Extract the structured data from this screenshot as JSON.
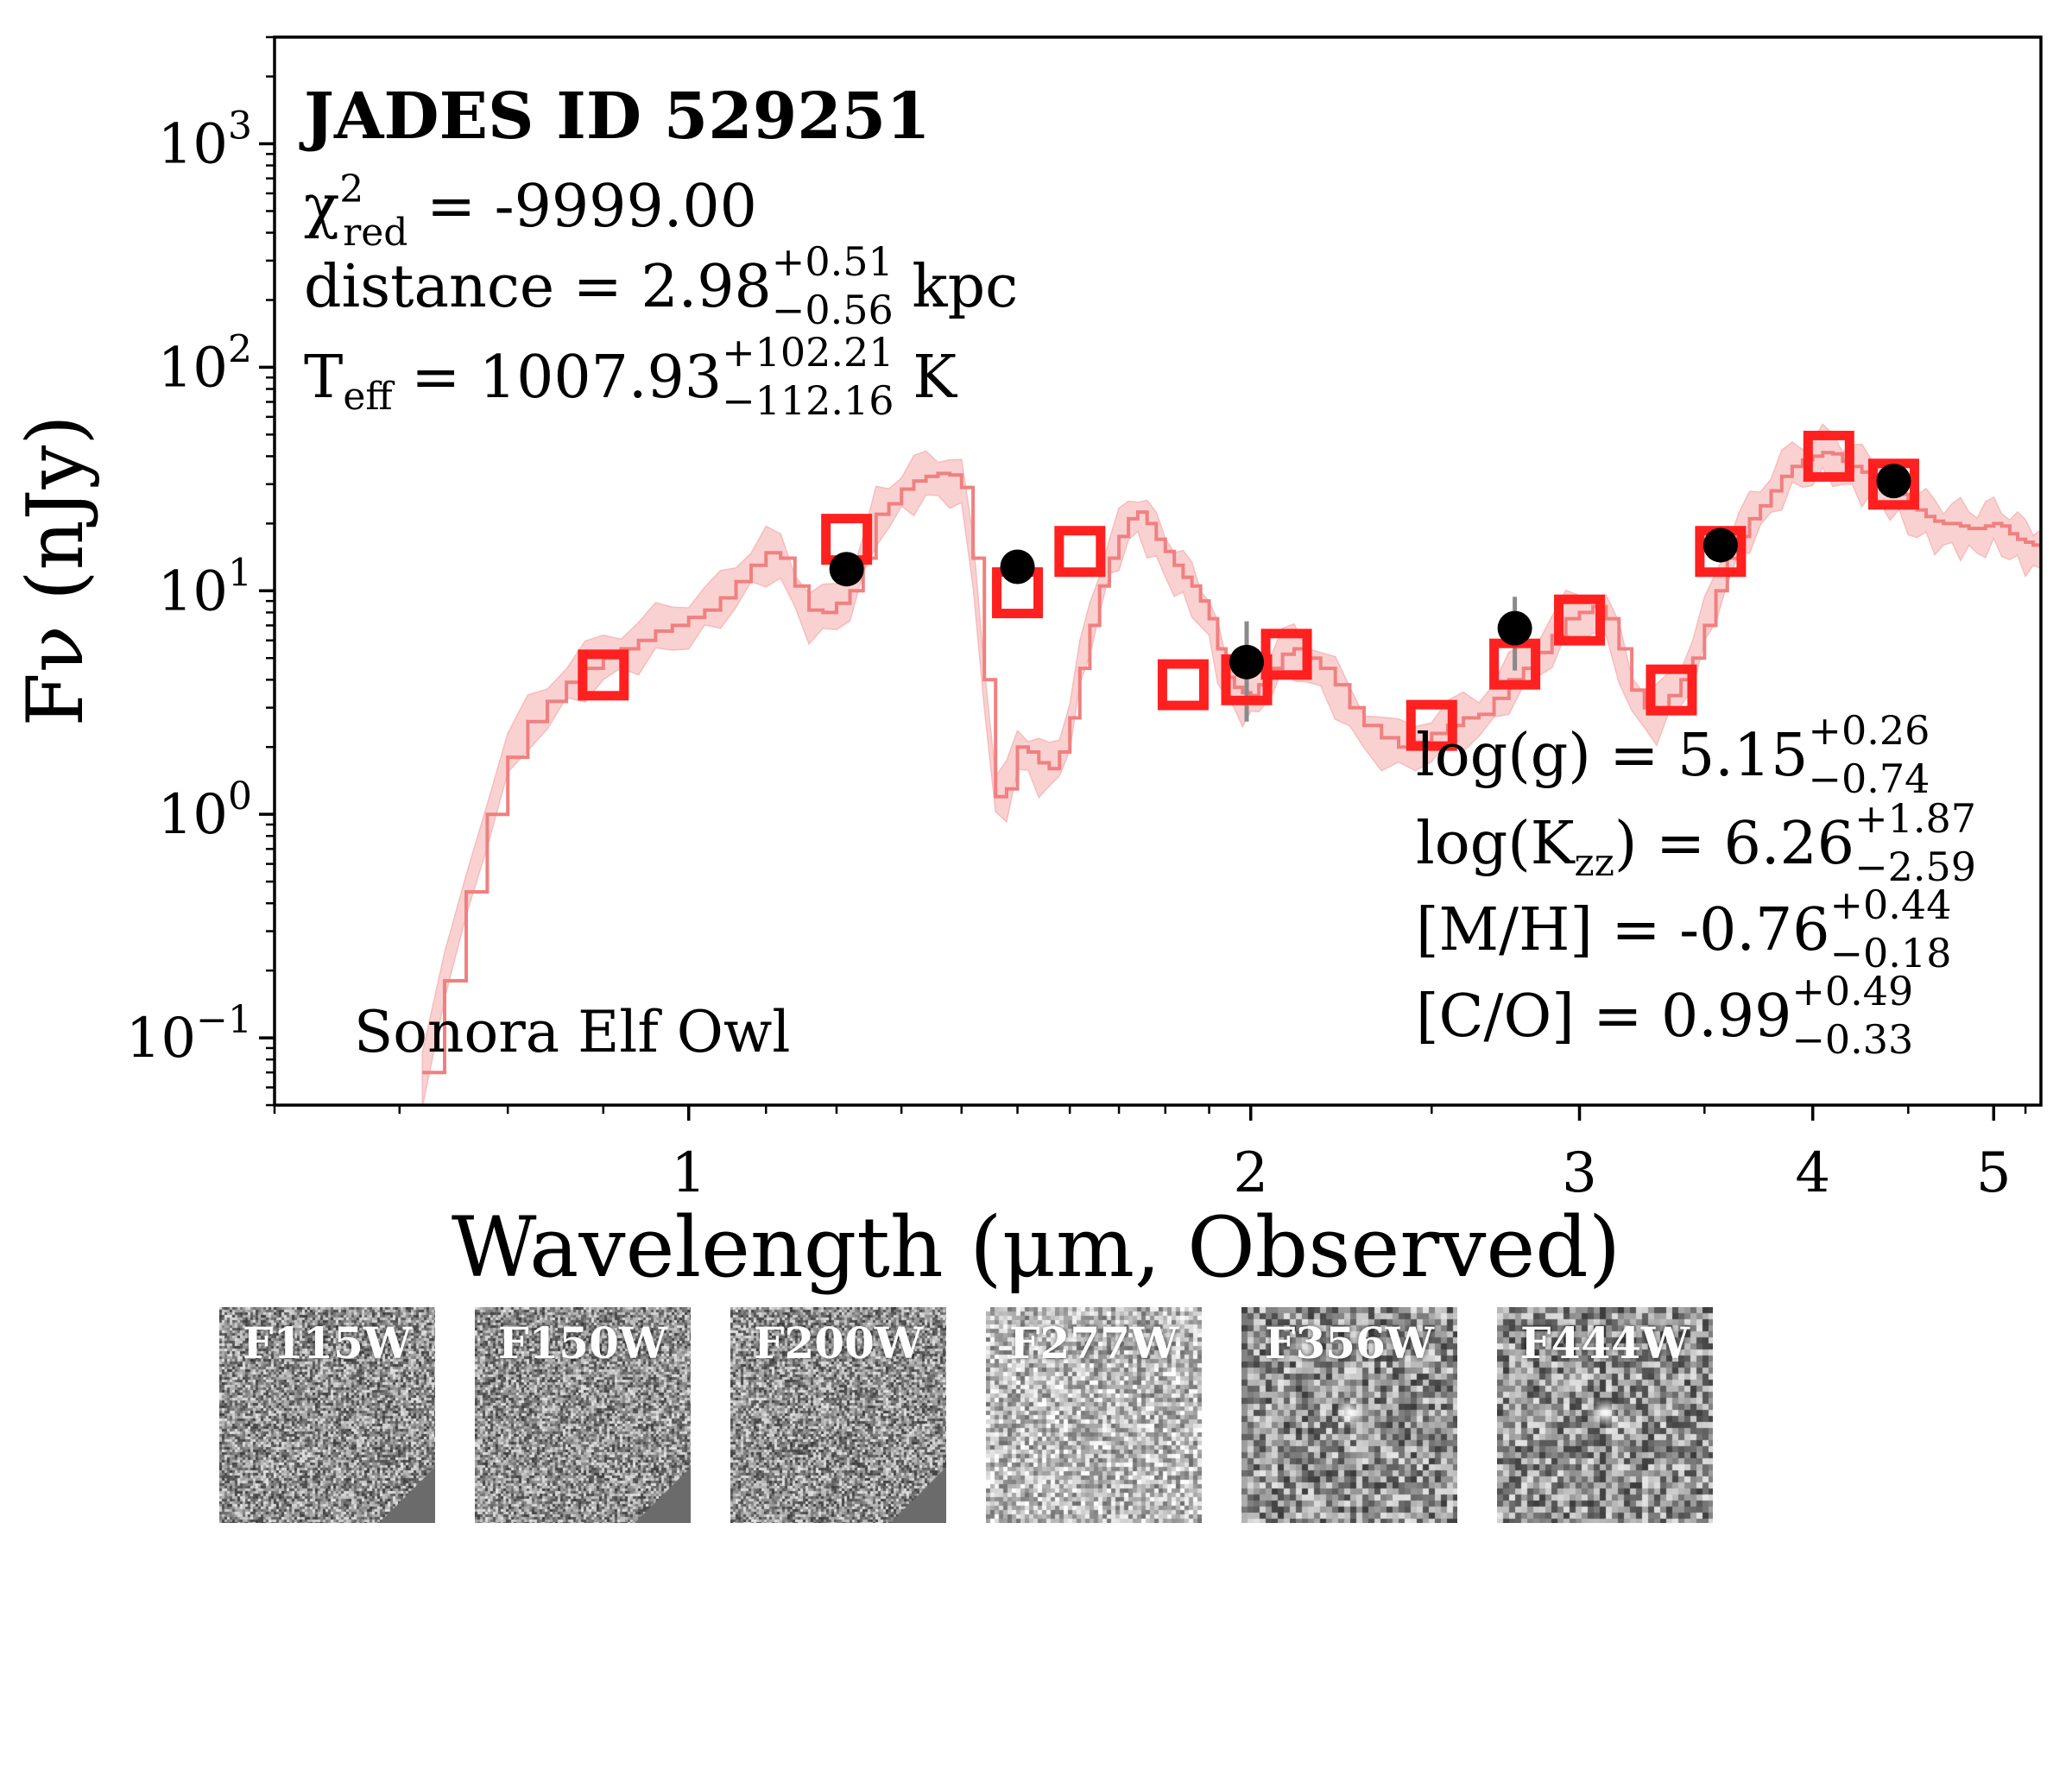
{
  "chart_data": {
    "type": "scatter",
    "title": "JADES ID 529251",
    "xlabel": "Wavelength (μm, Observed)",
    "ylabel": "Fν (nJy)",
    "xscale": "log",
    "yscale": "log",
    "xlim": [
      0.6,
      5.3
    ],
    "ylim": [
      0.05,
      3000
    ],
    "x_ticks": [
      {
        "value": 1,
        "label": "1"
      },
      {
        "value": 2,
        "label": "2"
      },
      {
        "value": 3,
        "label": "3"
      },
      {
        "value": 4,
        "label": "4"
      },
      {
        "value": 5,
        "label": "5"
      }
    ],
    "y_ticks": [
      {
        "value": 0.1,
        "base": "10",
        "exp": "−1"
      },
      {
        "value": 1,
        "base": "10",
        "exp": "0"
      },
      {
        "value": 10,
        "base": "10",
        "exp": "1"
      },
      {
        "value": 100,
        "base": "10",
        "exp": "2"
      },
      {
        "value": 1000,
        "base": "10",
        "exp": "3"
      }
    ],
    "grid": false,
    "fit_annotations": {
      "chi2_label": "χ",
      "chi2_sup": "2",
      "chi2_sub": "red",
      "chi2_value": " = -9999.00",
      "distance_label": "distance = 2.98",
      "distance_plus": "+0.51",
      "distance_minus": "−0.56",
      "distance_unit": " kpc",
      "teff_label": "T",
      "teff_sub": "eff",
      "teff_value": " = 1007.93",
      "teff_plus": "+102.21",
      "teff_minus": "−112.16",
      "teff_unit": " K",
      "logg_label": "log(g) = 5.15",
      "logg_plus": "+0.26",
      "logg_minus": "−0.74",
      "logkzz_label": "log(K",
      "logkzz_sub": "zz",
      "logkzz_value": ") = 6.26",
      "logkzz_plus": "+1.87",
      "logkzz_minus": "−2.59",
      "mh_label": "[M/H] = -0.76",
      "mh_plus": "+0.44",
      "mh_minus": "−0.18",
      "co_label": "[C/O] = 0.99",
      "co_plus": "+0.49",
      "co_minus": "−0.33",
      "model_name": "Sonora Elf Owl"
    },
    "series": [
      {
        "kind": "model_spectrum",
        "color": "#f08080",
        "band_color": "#f9caca",
        "points": [
          [
            0.72,
            0.07
          ],
          [
            0.74,
            0.18
          ],
          [
            0.76,
            0.45
          ],
          [
            0.78,
            1.0
          ],
          [
            0.8,
            1.8
          ],
          [
            0.82,
            2.6
          ],
          [
            0.84,
            3.2
          ],
          [
            0.86,
            3.9
          ],
          [
            0.88,
            4.5
          ],
          [
            0.9,
            5.0
          ],
          [
            0.92,
            5.5
          ],
          [
            0.94,
            6.0
          ],
          [
            0.96,
            6.6
          ],
          [
            0.98,
            7.0
          ],
          [
            1.0,
            7.6
          ],
          [
            1.02,
            8.2
          ],
          [
            1.04,
            9.3
          ],
          [
            1.06,
            11.0
          ],
          [
            1.08,
            13.0
          ],
          [
            1.1,
            14.8
          ],
          [
            1.12,
            14.0
          ],
          [
            1.14,
            10.5
          ],
          [
            1.16,
            8.2
          ],
          [
            1.18,
            8.0
          ],
          [
            1.2,
            8.8
          ],
          [
            1.22,
            10.0
          ],
          [
            1.24,
            14.0
          ],
          [
            1.26,
            22.0
          ],
          [
            1.28,
            24.5
          ],
          [
            1.3,
            28.5
          ],
          [
            1.32,
            31.0
          ],
          [
            1.34,
            32.5
          ],
          [
            1.36,
            33.5
          ],
          [
            1.38,
            33.0
          ],
          [
            1.4,
            29.0
          ],
          [
            1.42,
            14.0
          ],
          [
            1.44,
            4.0
          ],
          [
            1.46,
            1.2
          ],
          [
            1.48,
            1.3
          ],
          [
            1.5,
            2.0
          ],
          [
            1.52,
            1.9
          ],
          [
            1.54,
            1.7
          ],
          [
            1.56,
            1.6
          ],
          [
            1.58,
            1.9
          ],
          [
            1.6,
            2.7
          ],
          [
            1.62,
            4.5
          ],
          [
            1.64,
            7.0
          ],
          [
            1.66,
            10.5
          ],
          [
            1.68,
            14.0
          ],
          [
            1.7,
            17.5
          ],
          [
            1.72,
            21.0
          ],
          [
            1.74,
            22.5
          ],
          [
            1.76,
            20.0
          ],
          [
            1.78,
            17.0
          ],
          [
            1.8,
            15.0
          ],
          [
            1.82,
            13.0
          ],
          [
            1.84,
            11.5
          ],
          [
            1.86,
            10.5
          ],
          [
            1.88,
            9.0
          ],
          [
            1.9,
            7.5
          ],
          [
            1.92,
            5.5
          ],
          [
            1.94,
            4.1
          ],
          [
            1.96,
            3.7
          ],
          [
            1.98,
            3.5
          ],
          [
            2.0,
            3.4
          ],
          [
            2.02,
            3.8
          ],
          [
            2.05,
            4.5
          ],
          [
            2.08,
            5.2
          ],
          [
            2.11,
            5.5
          ],
          [
            2.14,
            5.0
          ],
          [
            2.18,
            4.5
          ],
          [
            2.22,
            3.8
          ],
          [
            2.26,
            3.0
          ],
          [
            2.3,
            2.5
          ],
          [
            2.35,
            2.2
          ],
          [
            2.4,
            2.0
          ],
          [
            2.45,
            2.1
          ],
          [
            2.5,
            2.3
          ],
          [
            2.55,
            2.5
          ],
          [
            2.6,
            2.7
          ],
          [
            2.65,
            2.8
          ],
          [
            2.7,
            3.3
          ],
          [
            2.75,
            4.0
          ],
          [
            2.8,
            4.5
          ],
          [
            2.85,
            5.3
          ],
          [
            2.9,
            6.3
          ],
          [
            2.95,
            7.5
          ],
          [
            3.0,
            8.0
          ],
          [
            3.05,
            8.5
          ],
          [
            3.1,
            7.5
          ],
          [
            3.15,
            5.5
          ],
          [
            3.2,
            3.6
          ],
          [
            3.25,
            3.0
          ],
          [
            3.3,
            2.9
          ],
          [
            3.35,
            3.4
          ],
          [
            3.4,
            4.0
          ],
          [
            3.45,
            5.0
          ],
          [
            3.5,
            7.0
          ],
          [
            3.55,
            10.0
          ],
          [
            3.6,
            14.0
          ],
          [
            3.65,
            17.5
          ],
          [
            3.7,
            21.0
          ],
          [
            3.75,
            24.0
          ],
          [
            3.8,
            28.0
          ],
          [
            3.85,
            32.5
          ],
          [
            3.9,
            36.0
          ],
          [
            3.95,
            38.5
          ],
          [
            4.0,
            40.0
          ],
          [
            4.05,
            41.5
          ],
          [
            4.1,
            41.0
          ],
          [
            4.15,
            38.0
          ],
          [
            4.2,
            36.0
          ],
          [
            4.25,
            34.0
          ],
          [
            4.3,
            33.0
          ],
          [
            4.35,
            31.0
          ],
          [
            4.4,
            29.0
          ],
          [
            4.45,
            27.0
          ],
          [
            4.5,
            24.0
          ],
          [
            4.55,
            23.0
          ],
          [
            4.6,
            21.5
          ],
          [
            4.65,
            20.5
          ],
          [
            4.7,
            20.0
          ],
          [
            4.75,
            20.0
          ],
          [
            4.8,
            19.5
          ],
          [
            4.85,
            19.0
          ],
          [
            4.9,
            19.0
          ],
          [
            4.95,
            19.5
          ],
          [
            5.0,
            20.0
          ],
          [
            5.05,
            19.5
          ],
          [
            5.1,
            18.0
          ],
          [
            5.15,
            17.0
          ],
          [
            5.2,
            16.5
          ],
          [
            5.25,
            16.0
          ],
          [
            5.3,
            15.5
          ]
        ]
      },
      {
        "kind": "model_photometry",
        "marker": "open-square",
        "color": "#ff2020",
        "x": [
          0.9,
          1.215,
          1.5,
          1.62,
          1.84,
          1.99,
          2.09,
          2.5,
          2.77,
          3.0,
          3.36,
          3.57,
          4.08,
          4.42
        ],
        "y": [
          4.2,
          17.0,
          9.8,
          15.0,
          3.8,
          4.0,
          5.2,
          2.5,
          4.7,
          7.4,
          3.6,
          15.0,
          40.0,
          30.0
        ]
      },
      {
        "kind": "observed_photometry",
        "marker": "filled-circle",
        "color": "#000000",
        "x": [
          1.215,
          1.5,
          1.99,
          2.77,
          3.57,
          4.42
        ],
        "y": [
          12.5,
          12.8,
          4.8,
          6.8,
          16.0,
          31.0
        ],
        "err_low": [
          11.0,
          11.5,
          2.6,
          4.4,
          14.5,
          29.0
        ],
        "err_high": [
          14.0,
          14.2,
          7.3,
          9.4,
          17.5,
          33.0
        ]
      }
    ],
    "cutouts": [
      {
        "label": "F115W",
        "seed": 11,
        "dither_corner": true,
        "point_source": false
      },
      {
        "label": "F150W",
        "seed": 23,
        "dither_corner": true,
        "point_source": false
      },
      {
        "label": "F200W",
        "seed": 37,
        "dither_corner": true,
        "point_source": false
      },
      {
        "label": "F277W",
        "seed": 41,
        "dither_corner": false,
        "point_source": false
      },
      {
        "label": "F356W",
        "seed": 53,
        "dither_corner": false,
        "point_source": true
      },
      {
        "label": "F444W",
        "seed": 67,
        "dither_corner": false,
        "point_source": true
      }
    ]
  }
}
